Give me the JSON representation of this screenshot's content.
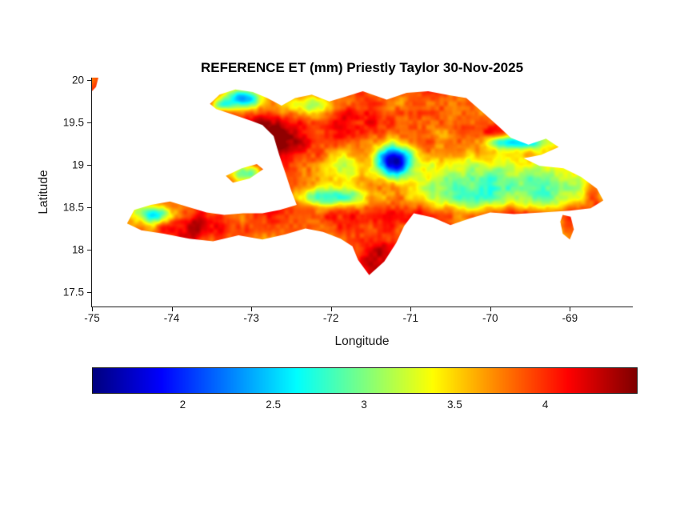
{
  "figure": {
    "background": "#ffffff"
  },
  "chart_data": {
    "type": "heatmap",
    "title": "REFERENCE ET (mm) Priestly Taylor 30-Nov-2025",
    "xlabel": "Longitude",
    "ylabel": "Latitude",
    "x_ticks": [
      -75,
      -74,
      -73,
      -72,
      -71,
      -70,
      -69
    ],
    "y_ticks": [
      20,
      19.5,
      19,
      18.5,
      18,
      17.5
    ],
    "xlim": [
      -75,
      -68.22
    ],
    "ylim": [
      17.33,
      20.03
    ],
    "grid": false,
    "units": "mm",
    "region": "Hispaniola (Haiti and Dominican Republic)",
    "colorbar": {
      "orientation": "horizontal",
      "colormap": "jet",
      "vmin": 1.5,
      "vmax": 4.5,
      "ticks": [
        2,
        2.5,
        3,
        3.5,
        4
      ]
    },
    "value_summary": {
      "description": "Daily reference evapotranspiration over Hispaniola; lowlands mostly 3.5-4.4 mm (orange/red, dark red along many coasts), mountain and interior zones 1.8-3.2 mm (blue to green), cyan streak near Samana bay and central cordillera",
      "min": 1.6,
      "max": 4.45
    },
    "map": {
      "islands": [
        {
          "name": "hispaniola",
          "points": [
            [
              -73.52,
              19.72
            ],
            [
              -73.4,
              19.83
            ],
            [
              -73.2,
              19.89
            ],
            [
              -72.98,
              19.86
            ],
            [
              -72.8,
              19.79
            ],
            [
              -72.62,
              19.7
            ],
            [
              -72.45,
              19.79
            ],
            [
              -72.24,
              19.83
            ],
            [
              -72.02,
              19.75
            ],
            [
              -71.8,
              19.81
            ],
            [
              -71.6,
              19.87
            ],
            [
              -71.3,
              19.77
            ],
            [
              -71.05,
              19.85
            ],
            [
              -70.78,
              19.87
            ],
            [
              -70.5,
              19.82
            ],
            [
              -70.3,
              19.79
            ],
            [
              -70.08,
              19.61
            ],
            [
              -69.9,
              19.46
            ],
            [
              -69.74,
              19.32
            ],
            [
              -69.52,
              19.24
            ],
            [
              -69.3,
              19.31
            ],
            [
              -69.14,
              19.21
            ],
            [
              -69.36,
              19.12
            ],
            [
              -69.58,
              19.08
            ],
            [
              -69.38,
              18.99
            ],
            [
              -69.08,
              18.96
            ],
            [
              -68.86,
              18.86
            ],
            [
              -68.66,
              18.72
            ],
            [
              -68.58,
              18.58
            ],
            [
              -68.74,
              18.49
            ],
            [
              -69.0,
              18.46
            ],
            [
              -69.35,
              18.44
            ],
            [
              -69.7,
              18.42
            ],
            [
              -70.0,
              18.44
            ],
            [
              -70.25,
              18.37
            ],
            [
              -70.5,
              18.29
            ],
            [
              -70.72,
              18.38
            ],
            [
              -70.96,
              18.43
            ],
            [
              -71.08,
              18.28
            ],
            [
              -71.18,
              18.08
            ],
            [
              -71.33,
              17.86
            ],
            [
              -71.52,
              17.7
            ],
            [
              -71.66,
              17.88
            ],
            [
              -71.73,
              18.04
            ],
            [
              -71.88,
              18.13
            ],
            [
              -72.1,
              18.21
            ],
            [
              -72.32,
              18.25
            ],
            [
              -72.58,
              18.18
            ],
            [
              -72.86,
              18.12
            ],
            [
              -73.16,
              18.17
            ],
            [
              -73.48,
              18.1
            ],
            [
              -73.78,
              18.13
            ],
            [
              -74.1,
              18.19
            ],
            [
              -74.38,
              18.23
            ],
            [
              -74.56,
              18.31
            ],
            [
              -74.47,
              18.47
            ],
            [
              -74.26,
              18.53
            ],
            [
              -74.02,
              18.57
            ],
            [
              -73.78,
              18.5
            ],
            [
              -73.56,
              18.44
            ],
            [
              -73.34,
              18.41
            ],
            [
              -73.1,
              18.43
            ],
            [
              -72.86,
              18.43
            ],
            [
              -72.64,
              18.47
            ],
            [
              -72.43,
              18.53
            ],
            [
              -72.5,
              18.7
            ],
            [
              -72.57,
              18.9
            ],
            [
              -72.65,
              19.12
            ],
            [
              -72.72,
              19.34
            ],
            [
              -72.86,
              19.47
            ],
            [
              -73.0,
              19.52
            ],
            [
              -73.25,
              19.6
            ],
            [
              -73.44,
              19.66
            ]
          ]
        },
        {
          "name": "ile-de-la-gonave",
          "points": [
            [
              -73.32,
              18.87
            ],
            [
              -73.12,
              18.96
            ],
            [
              -72.93,
              19.01
            ],
            [
              -72.85,
              18.95
            ],
            [
              -73.02,
              18.84
            ],
            [
              -73.23,
              18.79
            ]
          ]
        },
        {
          "name": "southeast-islet",
          "points": [
            [
              -69.09,
              18.41
            ],
            [
              -68.99,
              18.39
            ],
            [
              -68.95,
              18.24
            ],
            [
              -69.0,
              18.12
            ],
            [
              -69.09,
              18.19
            ],
            [
              -69.12,
              18.33
            ]
          ]
        },
        {
          "name": "corner-speck",
          "points": [
            [
              -75.0,
              20.03
            ],
            [
              -74.92,
              20.03
            ],
            [
              -74.95,
              19.92
            ],
            [
              -75.0,
              19.87
            ]
          ]
        }
      ],
      "field": {
        "base": 3.9,
        "noise_amp": 0.42,
        "clamp": [
          1.6,
          4.45
        ],
        "blobs": [
          [
            -73.1,
            19.78,
            0.2,
            0.08,
            -1.45
          ],
          [
            -73.38,
            19.7,
            0.1,
            0.05,
            -0.85
          ],
          [
            -72.25,
            19.7,
            0.28,
            0.09,
            -0.75
          ],
          [
            -72.7,
            19.33,
            0.42,
            0.16,
            0.5
          ],
          [
            -71.2,
            19.05,
            0.18,
            0.13,
            -2.1
          ],
          [
            -70.2,
            18.72,
            0.6,
            0.24,
            -1.2
          ],
          [
            -69.1,
            18.72,
            0.42,
            0.2,
            -0.75
          ],
          [
            -69.65,
            19.27,
            0.28,
            0.06,
            -1.4
          ],
          [
            -71.95,
            18.62,
            0.28,
            0.08,
            -1.25
          ],
          [
            -74.2,
            18.42,
            0.18,
            0.08,
            -1.3
          ],
          [
            -73.6,
            18.28,
            0.24,
            0.11,
            0.4
          ],
          [
            -72.76,
            19.0,
            0.1,
            0.3,
            0.45
          ],
          [
            -73.05,
            18.9,
            0.18,
            0.07,
            -0.9
          ],
          [
            -71.45,
            17.95,
            0.16,
            0.2,
            0.4
          ],
          [
            -68.7,
            18.62,
            0.1,
            0.12,
            0.4
          ],
          [
            -71.6,
            19.55,
            0.25,
            0.15,
            0.3
          ],
          [
            -69.9,
            18.42,
            0.9,
            0.08,
            0.5
          ],
          [
            -71.85,
            18.95,
            0.22,
            0.15,
            -0.7
          ]
        ]
      }
    }
  }
}
